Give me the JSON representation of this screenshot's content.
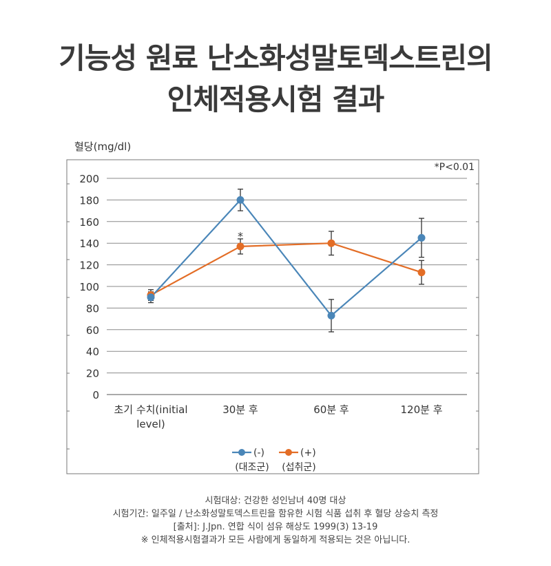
{
  "title": {
    "line1": "기능성 원료 난소화성말토덱스트린의",
    "line2": "인체적용시험 결과"
  },
  "chart_data": {
    "type": "line",
    "ylabel": "혈당(mg/dl)",
    "significance_note": "*P<0.01",
    "categories": [
      "초기 수치(initial level)",
      "30분 후",
      "60분 후",
      "120분 후"
    ],
    "category_lines": [
      [
        "초기 수치(initial",
        "level)"
      ],
      [
        "30분 후"
      ],
      [
        "60분 후"
      ],
      [
        "120분 후"
      ]
    ],
    "ylim": [
      0,
      200
    ],
    "yticks": [
      0,
      20,
      40,
      60,
      80,
      100,
      120,
      140,
      160,
      180,
      200
    ],
    "grid": true,
    "legend_position": "bottom-center",
    "series": [
      {
        "name": "(-)",
        "group": "(대조군)",
        "color": "#4a86b8",
        "values": [
          90,
          180,
          73,
          145
        ],
        "errors": [
          5,
          10,
          15,
          18
        ]
      },
      {
        "name": "(+)",
        "group": "(섭취군)",
        "color": "#e36d26",
        "values": [
          92,
          137,
          140,
          113
        ],
        "errors": [
          5,
          7,
          11,
          11
        ]
      }
    ],
    "annotations": [
      {
        "text": "*",
        "category": "30분 후",
        "y": 152
      }
    ]
  },
  "footer": {
    "line1": "시험대상: 건강한 성인남녀 40명 대상",
    "line2": "시험기간: 일주일 / 난소화성말토덱스트린을 함유한 시험 식품 섭취 후 혈당 상승치 측정",
    "line3": "[출처]: J.Jpn. 연합 식이 섬유 해상도 1999(3) 13-19",
    "line4": "※ 인체적용시험결과가 모든 사람에게 동일하게 적용되는 것은 아닙니다."
  }
}
